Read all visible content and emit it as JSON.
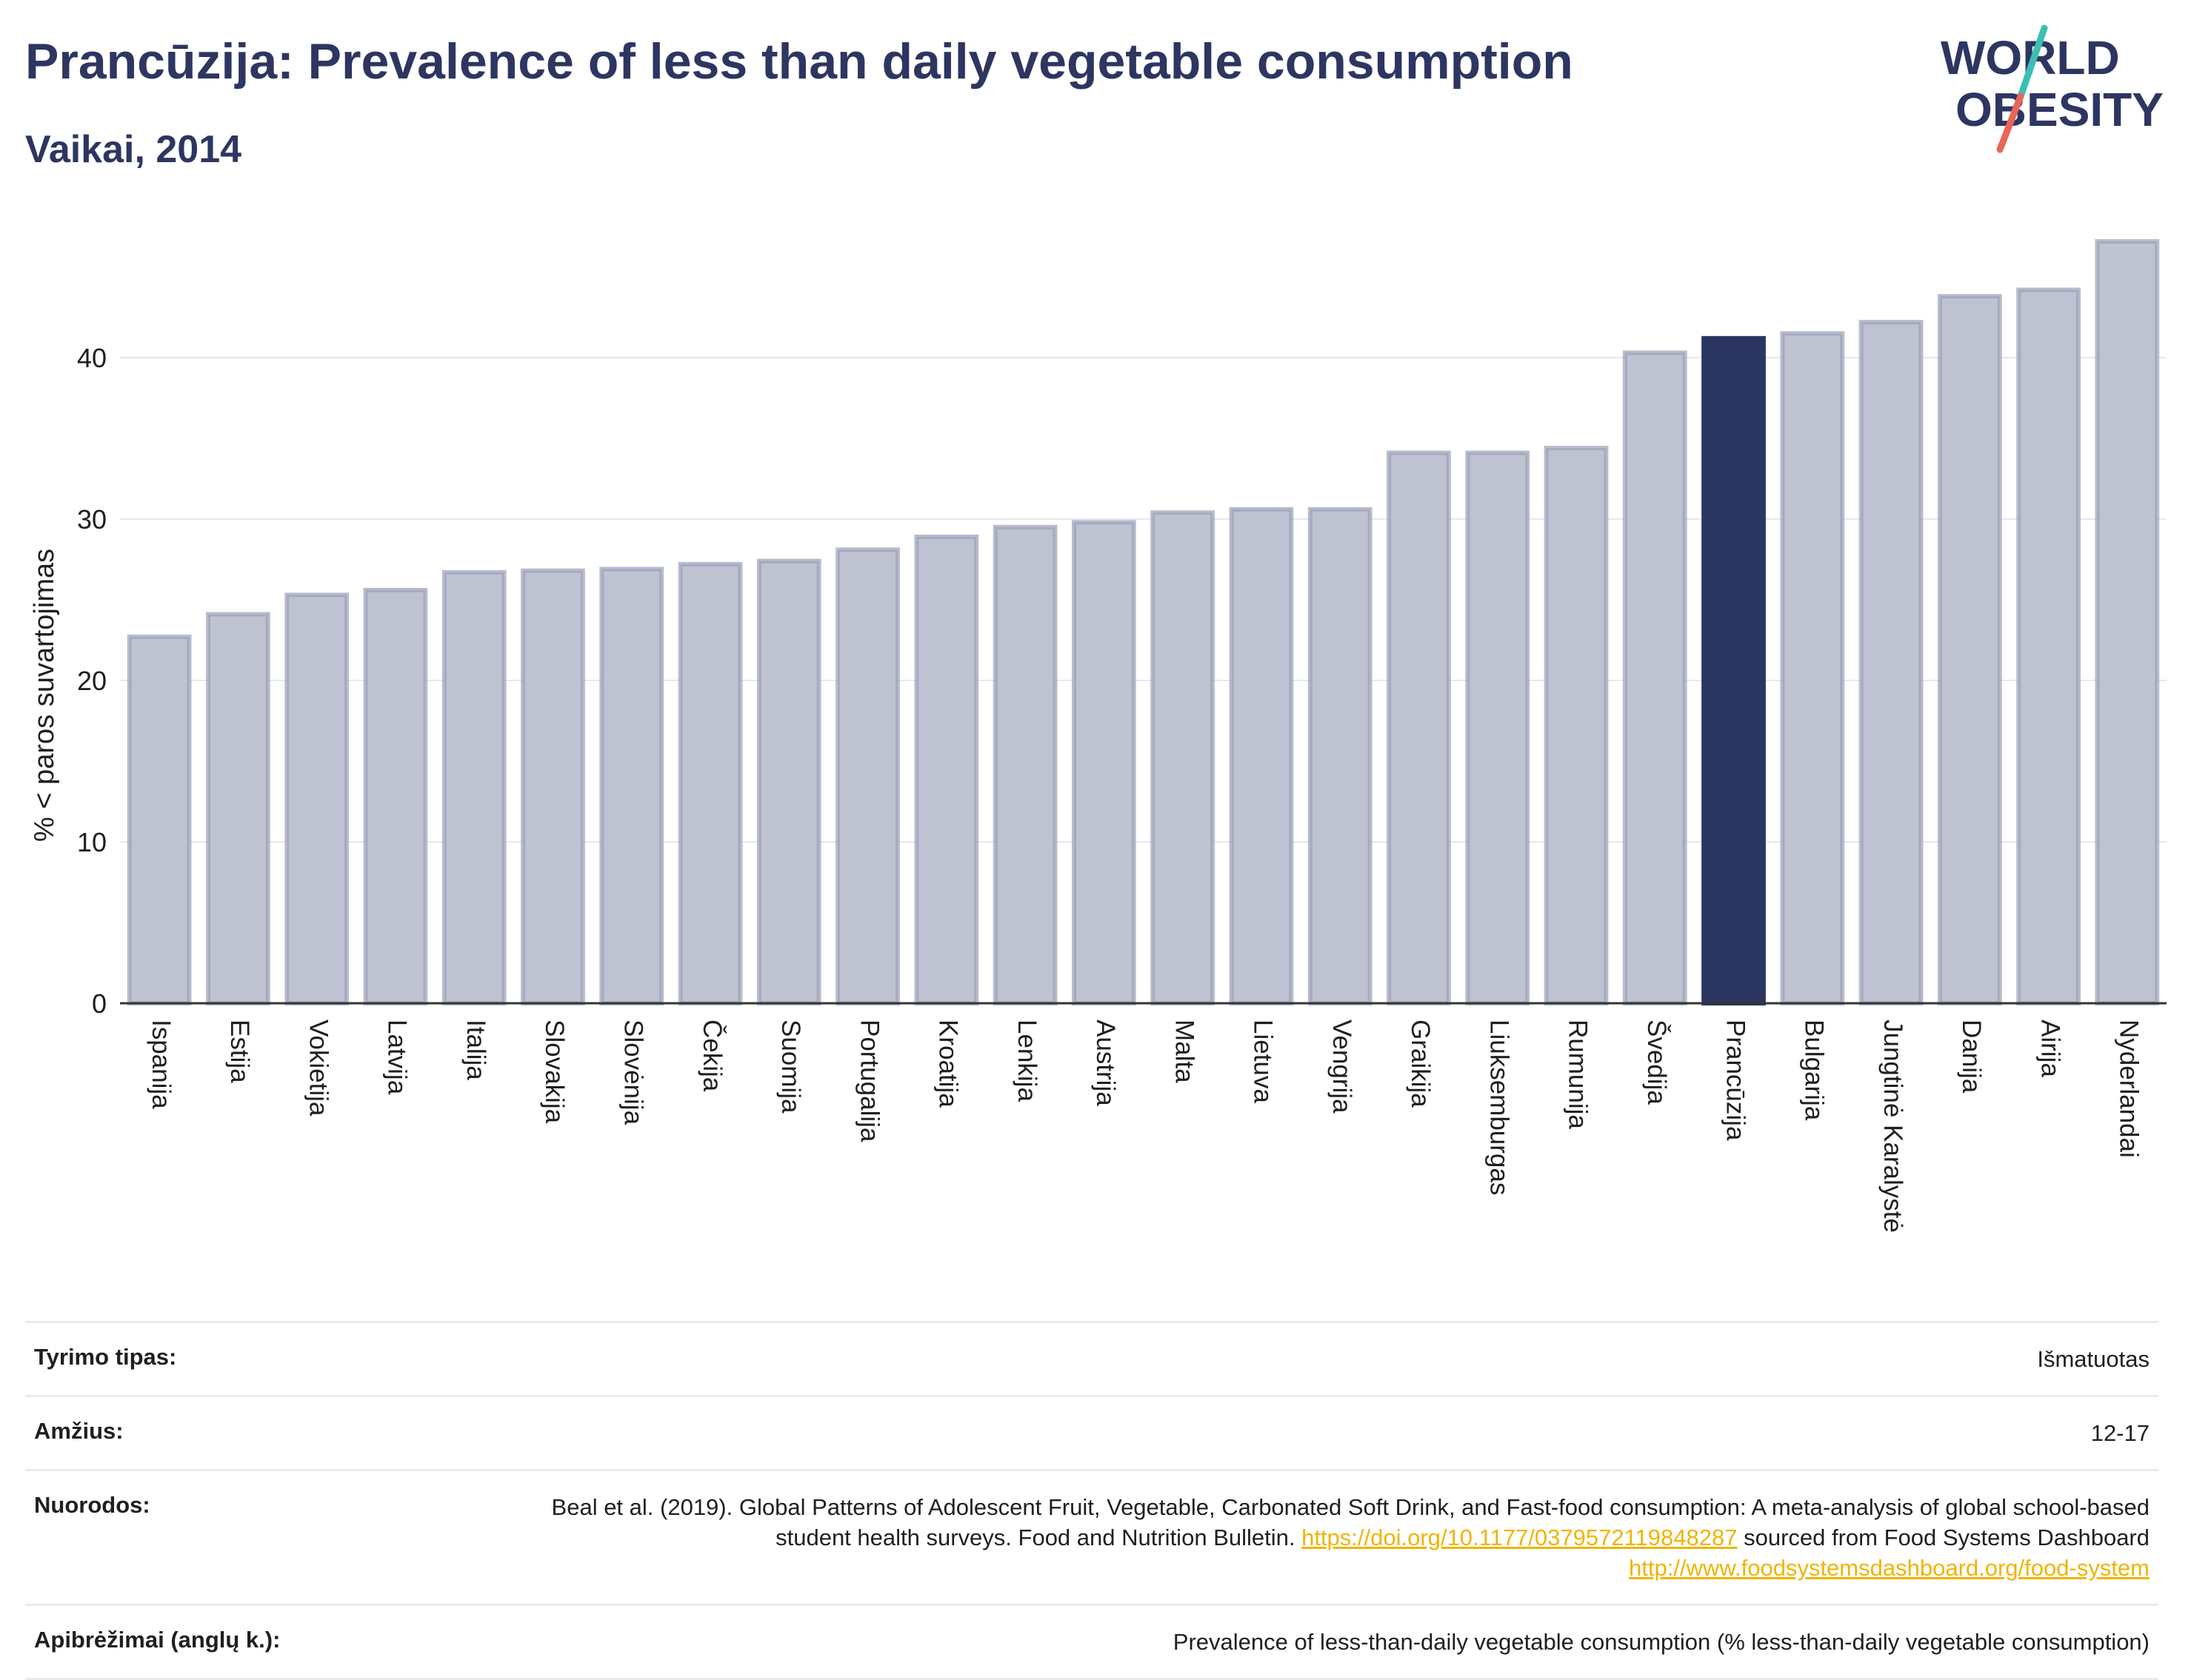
{
  "header": {
    "title": "Prancūzija: Prevalence of less than daily vegetable consumption",
    "subtitle": "Vaikai, 2014"
  },
  "logo": {
    "line1": "WORLD",
    "line2": "OBESITY",
    "colors": {
      "text": "#2d3561",
      "slash_top": "#3cbfb4",
      "slash_bottom": "#e8655a"
    }
  },
  "chart_data": {
    "type": "bar",
    "ylabel": "% < paros suvartojimas",
    "ylim": [
      0,
      48
    ],
    "yticks": [
      0,
      10,
      20,
      30,
      40
    ],
    "grid": true,
    "highlight": "Prancūzija",
    "colors": {
      "bar": "#bfc3d1",
      "bar_border": "#9aa0b8",
      "highlight": "#2b3561"
    },
    "categories": [
      "Ispanija",
      "Estija",
      "Vokietija",
      "Latvija",
      "Italija",
      "Slovakija",
      "Slovėnija",
      "Čekija",
      "Suomija",
      "Portugalija",
      "Kroatija",
      "Lenkija",
      "Austrija",
      "Malta",
      "Lietuva",
      "Vengrija",
      "Graikija",
      "Liuksemburgas",
      "Rumunija",
      "Švedija",
      "Prancūzija",
      "Bulgarija",
      "Jungtinė Karalystė",
      "Danija",
      "Airija",
      "Nyderlandai"
    ],
    "values": [
      22.7,
      24.1,
      25.3,
      25.6,
      26.7,
      26.8,
      26.9,
      27.2,
      27.4,
      28.1,
      28.9,
      29.5,
      29.8,
      30.4,
      30.6,
      30.6,
      34.1,
      34.1,
      34.4,
      40.3,
      41.2,
      41.5,
      42.2,
      43.8,
      44.2,
      47.2
    ]
  },
  "info": {
    "rows": [
      {
        "label": "Tyrimo tipas:",
        "value": "Išmatuotas"
      },
      {
        "label": "Amžius:",
        "value": "12-17"
      },
      {
        "label": "Nuorodos:",
        "text1": "Beal et al. (2019). Global Patterns of Adolescent Fruit, Vegetable, Carbonated Soft Drink, and Fast-food consumption: A meta-analysis of global school-based student health surveys. Food and Nutrition Bulletin.",
        "link1": "https://doi.org/10.1177/0379572119848287",
        "text2": "sourced from Food Systems Dashboard",
        "link2": "http://www.foodsystemsdashboard.org/food-system"
      },
      {
        "label": "Apibrėžimai (anglų k.):",
        "value": "Prevalence of less-than-daily vegetable consumption (% less-than-daily vegetable consumption)"
      }
    ]
  }
}
